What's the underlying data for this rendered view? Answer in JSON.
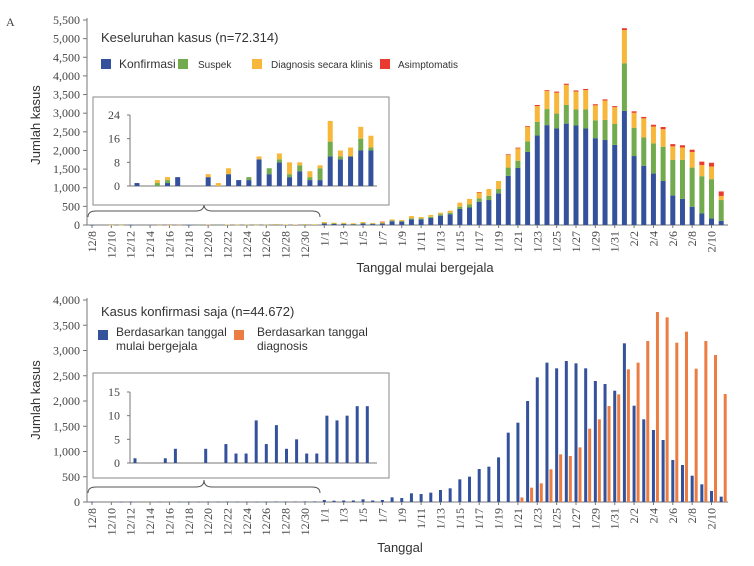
{
  "colors": {
    "konfirmasi": "#34519b",
    "suspek": "#72ab4e",
    "diagnosis": "#f7b73b",
    "asimptomatis": "#e83a30",
    "onset": "#34519b",
    "diagnosis_date": "#eb7d43",
    "axis": "#777777"
  },
  "chart_data": [
    {
      "type": "bar",
      "stacked": true,
      "panel_label": "A",
      "title": "Keseluruhan kasus (n=72.314)",
      "xlabel": "Tanggal mulai bergejala",
      "ylabel": "Jumlah kasus",
      "ylim": [
        0,
        5500
      ],
      "yticks": [
        "0",
        "500",
        "1,000",
        "1,500",
        "2,000",
        "2,500",
        "3,000",
        "3,500",
        "4,000",
        "4,500",
        "5,000",
        "5,500"
      ],
      "xticks": [
        "12/8",
        "12/10",
        "12/12",
        "12/14",
        "12/16",
        "12/18",
        "12/20",
        "12/22",
        "12/24",
        "12/26",
        "12/28",
        "12/30",
        "1/1",
        "1/3",
        "1/5",
        "1/7",
        "1/9",
        "1/11",
        "1/13",
        "1/15",
        "1/17",
        "1/19",
        "1/21",
        "1/23",
        "1/25",
        "1/27",
        "1/29",
        "1/31",
        "2/2",
        "2/4",
        "2/6",
        "2/8",
        "2/10"
      ],
      "legend_position": "top-left",
      "series": [
        {
          "name": "Konfirmasi",
          "values": [
            1,
            0,
            0,
            1,
            3,
            0,
            0,
            3,
            0,
            4,
            2,
            2,
            9,
            4,
            8,
            3,
            5,
            2,
            2,
            10,
            9,
            10,
            12,
            12,
            40,
            30,
            30,
            20,
            40,
            30,
            40,
            100,
            90,
            150,
            150,
            190,
            250,
            290,
            430,
            470,
            625,
            670,
            850,
            1320,
            1530,
            1960,
            2400,
            2680,
            2590,
            2720,
            2670,
            2590,
            2330,
            2280,
            2150,
            3060,
            1850,
            1590,
            1380,
            1180,
            790,
            700,
            490,
            310,
            180,
            110
          ]
        },
        {
          "name": "Suspek",
          "values": [
            0,
            0,
            1,
            1,
            0,
            0,
            0,
            0,
            0,
            0,
            0,
            1,
            0,
            2,
            1,
            1,
            2,
            1,
            4,
            5,
            1,
            0,
            4,
            1,
            10,
            10,
            5,
            5,
            10,
            5,
            10,
            20,
            20,
            30,
            30,
            30,
            40,
            40,
            60,
            80,
            90,
            110,
            115,
            220,
            195,
            285,
            370,
            430,
            400,
            500,
            430,
            510,
            480,
            540,
            560,
            1280,
            760,
            760,
            810,
            920,
            960,
            1050,
            1050,
            1000,
            1050,
            560
          ]
        },
        {
          "name": "Diagnosis secara klinis",
          "values": [
            0,
            0,
            1,
            1,
            0,
            0,
            0,
            1,
            1,
            2,
            0,
            0,
            1,
            0,
            2,
            4,
            1,
            2,
            1,
            7,
            2,
            3,
            4,
            4,
            30,
            20,
            25,
            20,
            30,
            20,
            30,
            30,
            25,
            60,
            35,
            50,
            40,
            55,
            110,
            150,
            160,
            185,
            215,
            335,
            330,
            390,
            420,
            490,
            560,
            540,
            480,
            520,
            400,
            520,
            450,
            890,
            400,
            510,
            450,
            470,
            360,
            330,
            420,
            300,
            340,
            110
          ]
        },
        {
          "name": "Asimptomatis",
          "values": [
            0,
            0,
            0,
            0,
            0,
            0,
            0,
            0,
            0,
            0,
            0,
            0,
            0,
            0,
            0,
            0,
            0,
            0,
            0,
            0,
            0,
            0,
            0,
            0,
            0,
            0,
            0,
            0,
            0,
            0,
            10,
            0,
            0,
            0,
            0,
            0,
            0,
            0,
            0,
            0,
            10,
            0,
            0,
            20,
            20,
            20,
            30,
            20,
            30,
            30,
            30,
            30,
            30,
            30,
            30,
            50,
            40,
            40,
            50,
            60,
            60,
            60,
            60,
            90,
            100,
            120
          ]
        }
      ],
      "inset": {
        "range": "12/8-12/31",
        "ylim": [
          0,
          24
        ],
        "yticks": [
          "0",
          "8",
          "16",
          "24"
        ]
      }
    },
    {
      "type": "bar",
      "title": "Kasus konfirmasi saja (n=44.672)",
      "xlabel": "Tanggal",
      "ylabel": "Jumlah kasus",
      "ylim": [
        0,
        4000
      ],
      "yticks": [
        "0",
        "500",
        "1,000",
        "1,500",
        "2,000",
        "2,500",
        "3,000",
        "3,500",
        "4,000"
      ],
      "xticks": [
        "12/8",
        "12/10",
        "12/12",
        "12/14",
        "12/16",
        "12/18",
        "12/20",
        "12/22",
        "12/24",
        "12/26",
        "12/28",
        "12/30",
        "1/1",
        "1/3",
        "1/5",
        "1/7",
        "1/9",
        "1/11",
        "1/13",
        "1/15",
        "1/17",
        "1/19",
        "1/21",
        "1/23",
        "1/25",
        "1/27",
        "1/29",
        "1/31",
        "2/2",
        "2/4",
        "2/6",
        "2/8",
        "2/10"
      ],
      "legend_position": "top-left",
      "series": [
        {
          "name": "Berdasarkan tanggal mulai bergejala",
          "line1": "Berdasarkan tanggal",
          "line2": "mulai bergejala",
          "values": [
            1,
            0,
            0,
            1,
            3,
            0,
            0,
            3,
            0,
            4,
            2,
            2,
            9,
            4,
            8,
            3,
            5,
            2,
            2,
            10,
            9,
            10,
            12,
            12,
            40,
            26,
            30,
            30,
            53,
            30,
            40,
            92,
            79,
            172,
            158,
            185,
            238,
            271,
            449,
            502,
            653,
            700,
            884,
            1373,
            1571,
            2000,
            2468,
            2759,
            2647,
            2792,
            2746,
            2647,
            2396,
            2336,
            2204,
            3142,
            1907,
            1637,
            1426,
            1228,
            832,
            733,
            521,
            350,
            218,
            106
          ]
        },
        {
          "name": "Berdasarkan tanggal diagnosis",
          "line1": "Berdasarkan tanggal",
          "line2": "diagnosis",
          "values": [
            0,
            0,
            0,
            0,
            0,
            0,
            0,
            0,
            0,
            0,
            0,
            0,
            0,
            0,
            0,
            0,
            0,
            0,
            0,
            0,
            0,
            0,
            0,
            0,
            0,
            0,
            0,
            0,
            0,
            0,
            0,
            0,
            0,
            0,
            0,
            0,
            0,
            0,
            0,
            0,
            0,
            0,
            0,
            0,
            90,
            284,
            370,
            647,
            944,
            911,
            1082,
            1452,
            1637,
            1901,
            2132,
            2627,
            2759,
            3188,
            3762,
            3656,
            3155,
            3373,
            2640,
            3188,
            2911,
            2138
          ]
        }
      ],
      "inset": {
        "range": "12/8-12/31",
        "ylim": [
          0,
          15
        ],
        "yticks": [
          "0",
          "5",
          "10",
          "15"
        ]
      }
    }
  ]
}
